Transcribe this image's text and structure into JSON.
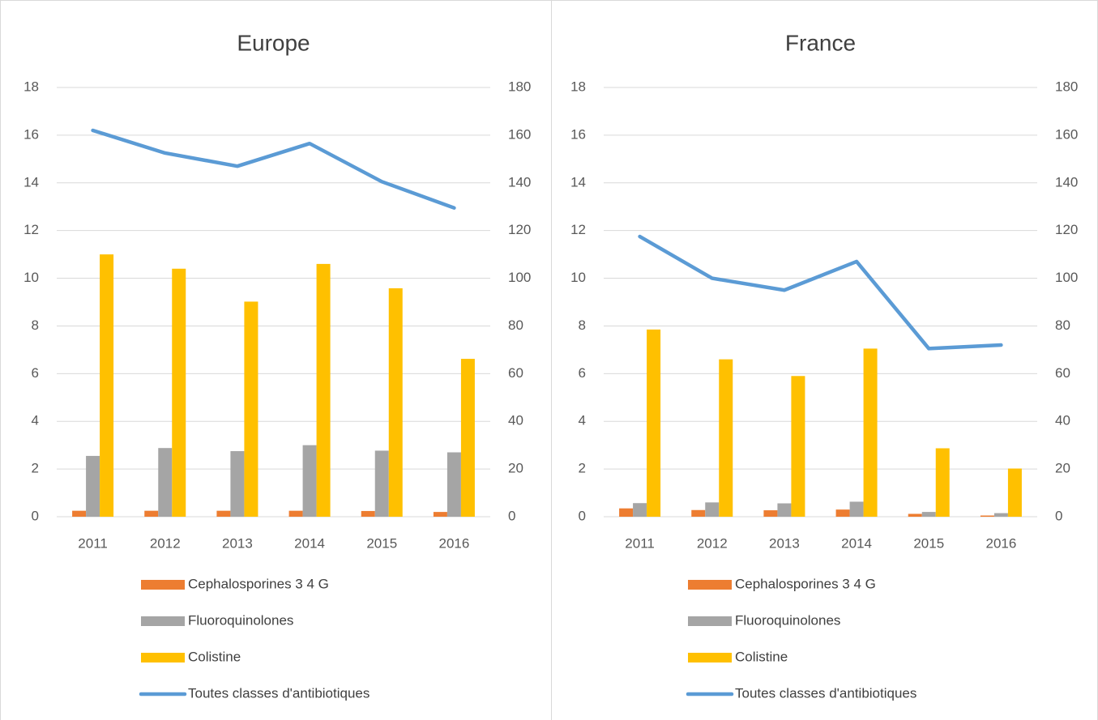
{
  "chart_data": [
    {
      "type": "combo",
      "title": "Europe",
      "categories": [
        "2011",
        "2012",
        "2013",
        "2014",
        "2015",
        "2016"
      ],
      "series": [
        {
          "name": "Cephalosporines 3 4 G",
          "type": "bar",
          "color": "#ed7d31",
          "values": [
            0.25,
            0.25,
            0.25,
            0.25,
            0.24,
            0.2
          ]
        },
        {
          "name": "Fluoroquinolones",
          "type": "bar",
          "color": "#a5a5a5",
          "values": [
            2.55,
            2.88,
            2.75,
            3.0,
            2.77,
            2.7
          ]
        },
        {
          "name": "Colistine",
          "type": "bar",
          "color": "#ffc000",
          "values": [
            11.0,
            10.4,
            9.02,
            10.6,
            9.58,
            6.62
          ]
        },
        {
          "name": "Toutes classes d'antibiotiques",
          "type": "line",
          "axis": "y2",
          "color": "#5b9bd5",
          "values": [
            162,
            152.5,
            147,
            156.5,
            140.5,
            129.5
          ]
        }
      ],
      "ylim": [
        0,
        18
      ],
      "yticks": [
        0,
        2,
        4,
        6,
        8,
        10,
        12,
        14,
        16,
        18
      ],
      "y2lim": [
        0,
        180
      ],
      "y2ticks": [
        0,
        20,
        40,
        60,
        80,
        100,
        120,
        140,
        160,
        180
      ],
      "grid": true
    },
    {
      "type": "combo",
      "title": "France",
      "categories": [
        "2011",
        "2012",
        "2013",
        "2014",
        "2015",
        "2016"
      ],
      "series": [
        {
          "name": "Cephalosporines 3 4 G",
          "type": "bar",
          "color": "#ed7d31",
          "values": [
            0.35,
            0.28,
            0.27,
            0.3,
            0.12,
            0.05
          ]
        },
        {
          "name": "Fluoroquinolones",
          "type": "bar",
          "color": "#a5a5a5",
          "values": [
            0.57,
            0.6,
            0.56,
            0.63,
            0.2,
            0.15
          ]
        },
        {
          "name": "Colistine",
          "type": "bar",
          "color": "#ffc000",
          "values": [
            7.85,
            6.6,
            5.9,
            7.05,
            2.87,
            2.02
          ]
        },
        {
          "name": "Toutes classes d'antibiotiques",
          "type": "line",
          "axis": "y2",
          "color": "#5b9bd5",
          "values": [
            117.5,
            100,
            95,
            107,
            70.5,
            72
          ]
        }
      ],
      "ylim": [
        0,
        18
      ],
      "yticks": [
        0,
        2,
        4,
        6,
        8,
        10,
        12,
        14,
        16,
        18
      ],
      "y2lim": [
        0,
        180
      ],
      "y2ticks": [
        0,
        20,
        40,
        60,
        80,
        100,
        120,
        140,
        160,
        180
      ],
      "grid": true
    }
  ]
}
